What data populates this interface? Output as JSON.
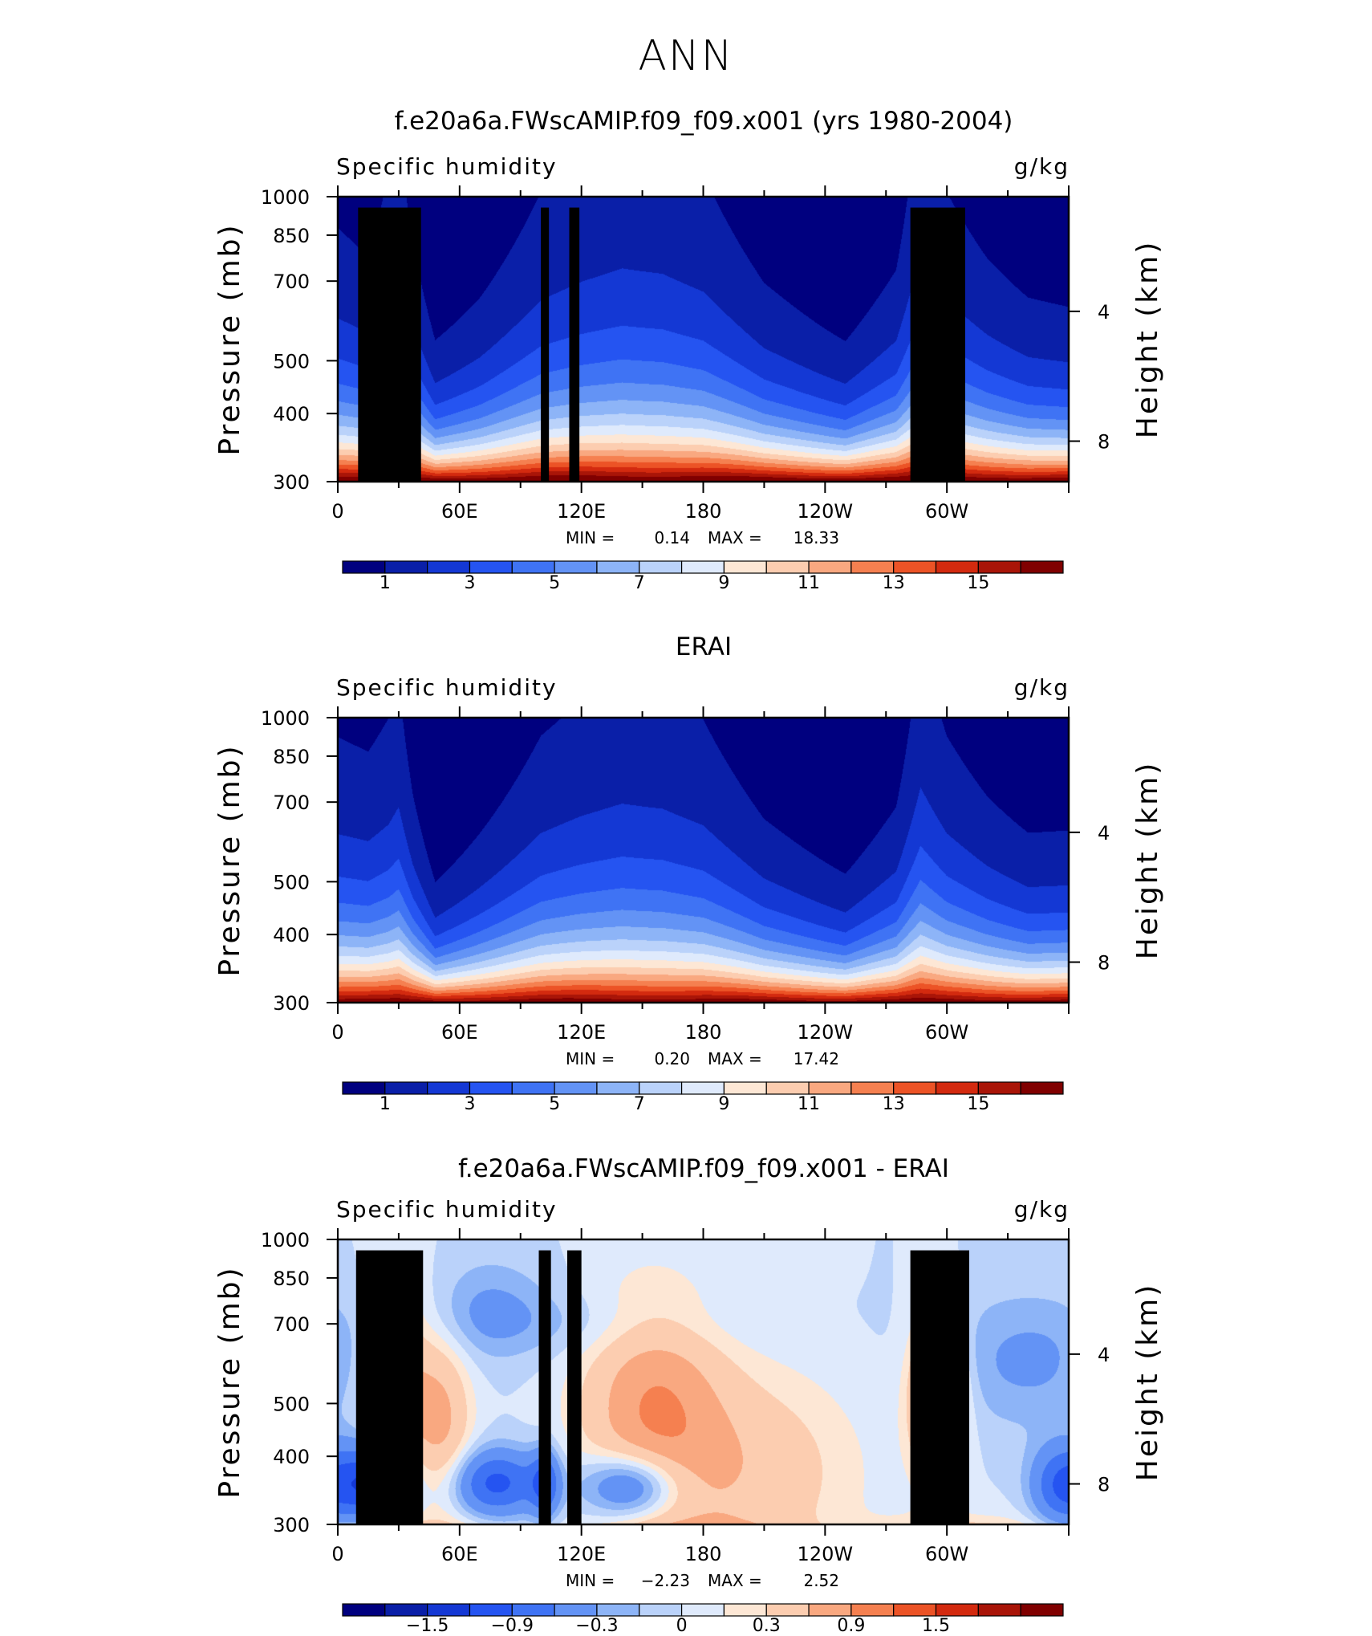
{
  "page_title": "ANN",
  "colors": {
    "abs_scale": [
      "#00007f",
      "#0a1fa8",
      "#1438d4",
      "#2554f1",
      "#3f73f4",
      "#6393f5",
      "#8db4f7",
      "#bad2fa",
      "#dfeafc",
      "#fde7d5",
      "#fccdb0",
      "#f9a880",
      "#f58050",
      "#ec5326",
      "#d32a0f",
      "#a91508",
      "#800000"
    ],
    "diff_scale": [
      "#00007f",
      "#0a1fa8",
      "#1438d4",
      "#2554f1",
      "#3f73f4",
      "#6393f5",
      "#8db4f7",
      "#bad2fa",
      "#dfeafc",
      "#fde7d5",
      "#fccdb0",
      "#f9a880",
      "#f58050",
      "#ec5326",
      "#d32a0f",
      "#a91508",
      "#800000"
    ],
    "terrain": "#000000"
  },
  "chart_data": [
    {
      "type": "heatmap",
      "title": "f.e20a6a.FWscAMIP.f09_f09.x001 (yrs 1980-2004)",
      "left_label": "Specific humidity",
      "right_label": "g/kg",
      "ylabel": "Pressure (mb)",
      "y2label": "Height (km)",
      "x_ticks": [
        "0",
        "60E",
        "120E",
        "180",
        "120W",
        "60W"
      ],
      "y_ticks": [
        "300",
        "400",
        "500",
        "700",
        "850",
        "1000"
      ],
      "y2_ticks": [
        "8",
        "4"
      ],
      "xlim": [
        0,
        360
      ],
      "ylim": [
        1000,
        300
      ],
      "y_scale": "log",
      "stats": {
        "min_label": "MIN =",
        "min": "0.14",
        "max_label": "MAX =",
        "max": "18.33"
      },
      "colorbar_ticks": [
        "1",
        "3",
        "5",
        "7",
        "9",
        "11",
        "13",
        "15"
      ],
      "colorbar_levels": [
        1,
        2,
        3,
        4,
        5,
        6,
        7,
        8,
        9,
        10,
        11,
        12,
        13,
        14,
        15,
        16
      ],
      "field": {
        "surface_max": 17.5,
        "scale_height_hpa": 230,
        "anomaly": [
          [
            0,
            0
          ],
          [
            15,
            -0.2
          ],
          [
            25,
            0.3
          ],
          [
            30,
            0.5
          ],
          [
            37,
            -0.1
          ],
          [
            48,
            -0.9
          ],
          [
            70,
            -0.5
          ],
          [
            100,
            0.2
          ],
          [
            120,
            0.4
          ],
          [
            140,
            0.55
          ],
          [
            160,
            0.5
          ],
          [
            180,
            0.3
          ],
          [
            210,
            -0.4
          ],
          [
            250,
            -0.9
          ],
          [
            275,
            -0.3
          ],
          [
            287,
            0.7
          ],
          [
            300,
            0.2
          ],
          [
            320,
            -0.2
          ],
          [
            340,
            -0.5
          ],
          [
            360,
            -0.6
          ]
        ]
      },
      "terrain_blocks": [
        [
          10,
          41,
          955
        ],
        [
          27,
          34,
          880
        ],
        [
          100,
          104,
          955
        ],
        [
          114,
          119,
          955
        ],
        [
          282,
          309,
          955
        ]
      ]
    },
    {
      "type": "heatmap",
      "title": "ERAI",
      "left_label": "Specific humidity",
      "right_label": "g/kg",
      "ylabel": "Pressure (mb)",
      "y2label": "Height (km)",
      "x_ticks": [
        "0",
        "60E",
        "120E",
        "180",
        "120W",
        "60W"
      ],
      "y_ticks": [
        "300",
        "400",
        "500",
        "700",
        "850",
        "1000"
      ],
      "y2_ticks": [
        "8",
        "4"
      ],
      "xlim": [
        0,
        360
      ],
      "ylim": [
        1000,
        300
      ],
      "y_scale": "log",
      "stats": {
        "min_label": "MIN =",
        "min": "0.20",
        "max_label": "MAX =",
        "max": "17.42"
      },
      "colorbar_ticks": [
        "1",
        "3",
        "5",
        "7",
        "9",
        "11",
        "13",
        "15"
      ],
      "colorbar_levels": [
        1,
        2,
        3,
        4,
        5,
        6,
        7,
        8,
        9,
        10,
        11,
        12,
        13,
        14,
        15,
        16
      ],
      "field": {
        "surface_max": 17.0,
        "scale_height_hpa": 230,
        "anomaly": [
          [
            0,
            0.1
          ],
          [
            15,
            0
          ],
          [
            25,
            0.2
          ],
          [
            30,
            0.4
          ],
          [
            37,
            -0.3
          ],
          [
            48,
            -1.1
          ],
          [
            70,
            -0.6
          ],
          [
            100,
            0.1
          ],
          [
            120,
            0.3
          ],
          [
            140,
            0.45
          ],
          [
            160,
            0.4
          ],
          [
            180,
            0.2
          ],
          [
            210,
            -0.5
          ],
          [
            250,
            -1.0
          ],
          [
            275,
            -0.4
          ],
          [
            287,
            0.6
          ],
          [
            300,
            0.1
          ],
          [
            320,
            -0.3
          ],
          [
            340,
            -0.6
          ],
          [
            360,
            -0.6
          ]
        ]
      },
      "terrain_blocks": []
    },
    {
      "type": "heatmap",
      "title": "f.e20a6a.FWscAMIP.f09_f09.x001 - ERAI",
      "left_label": "Specific humidity",
      "right_label": "g/kg",
      "ylabel": "Pressure (mb)",
      "y2label": "Height (km)",
      "x_ticks": [
        "0",
        "60E",
        "120E",
        "180",
        "120W",
        "60W"
      ],
      "y_ticks": [
        "300",
        "400",
        "500",
        "700",
        "850",
        "1000"
      ],
      "y2_ticks": [
        "8",
        "4"
      ],
      "xlim": [
        0,
        360
      ],
      "ylim": [
        1000,
        300
      ],
      "y_scale": "log",
      "stats": {
        "min_label": "MIN =",
        "min": "−2.23",
        "max_label": "MAX =",
        "max": "2.52"
      },
      "colorbar_ticks": [
        "−1.5",
        "−0.9",
        "−0.3",
        "0",
        "0.3",
        "0.9",
        "1.5"
      ],
      "colorbar_levels": [
        -1.8,
        -1.5,
        -1.2,
        -0.9,
        -0.6,
        -0.3,
        -0.15,
        0,
        0.15,
        0.3,
        0.6,
        0.9,
        1.2,
        1.5,
        1.8,
        2.1
      ],
      "field": {
        "blobs": [
          [
            30,
            560,
            12,
            0.28,
            0.7
          ],
          [
            52,
            650,
            10,
            0.25,
            0.6
          ],
          [
            18,
            840,
            12,
            0.12,
            -1.3
          ],
          [
            78,
            840,
            16,
            0.1,
            -1.0
          ],
          [
            102,
            840,
            5,
            0.1,
            -0.8
          ],
          [
            145,
            850,
            17,
            0.1,
            -1.0
          ],
          [
            155,
            600,
            24,
            0.32,
            0.8
          ],
          [
            200,
            800,
            38,
            0.3,
            0.5
          ],
          [
            295,
            580,
            9,
            0.22,
            1.2
          ],
          [
            355,
            850,
            10,
            0.12,
            -0.8
          ],
          [
            125,
            430,
            55,
            0.1,
            -0.18
          ],
          [
            340,
            500,
            30,
            0.2,
            -0.35
          ],
          [
            75,
            400,
            20,
            0.15,
            -0.3
          ]
        ],
        "near_surface_bias": 0.35
      },
      "terrain_blocks": [
        [
          9,
          42,
          955
        ],
        [
          27,
          35,
          880
        ],
        [
          99,
          105,
          955
        ],
        [
          113,
          120,
          955
        ],
        [
          282,
          311,
          955
        ]
      ]
    }
  ]
}
